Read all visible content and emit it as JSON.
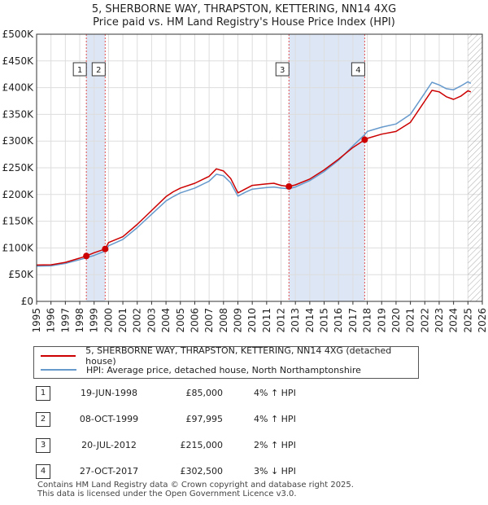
{
  "title": {
    "line1": "5, SHERBORNE WAY, THRAPSTON, KETTERING, NN14 4XG",
    "line2": "Price paid vs. HM Land Registry's House Price Index (HPI)"
  },
  "colors": {
    "price_line": "#cc0000",
    "hpi_line": "#6699cc",
    "shade": "#dde6f5",
    "grid": "#dddddd",
    "marker": "#cc0000"
  },
  "legend": {
    "price_label": "5, SHERBORNE WAY, THRAPSTON, KETTERING, NN14 4XG (detached house)",
    "hpi_label": "HPI: Average price, detached house, North Northamptonshire"
  },
  "transactions": [
    {
      "num": "1",
      "date": "19-JUN-1998",
      "price": "£85,000",
      "hpi": "4% ↑ HPI"
    },
    {
      "num": "2",
      "date": "08-OCT-1999",
      "price": "£97,995",
      "hpi": "4% ↑ HPI"
    },
    {
      "num": "3",
      "date": "20-JUL-2012",
      "price": "£215,000",
      "hpi": "2% ↑ HPI"
    },
    {
      "num": "4",
      "date": "27-OCT-2017",
      "price": "£302,500",
      "hpi": "3% ↓ HPI"
    }
  ],
  "footer": {
    "line1": "Contains HM Land Registry data © Crown copyright and database right 2025.",
    "line2": "This data is licensed under the Open Government Licence v3.0."
  },
  "chart_data": {
    "type": "line",
    "xlim": [
      1995,
      2026
    ],
    "ylim": [
      0,
      500000
    ],
    "x_ticks": [
      1995,
      1996,
      1997,
      1998,
      1999,
      2000,
      2001,
      2002,
      2003,
      2004,
      2005,
      2006,
      2007,
      2008,
      2009,
      2010,
      2011,
      2012,
      2013,
      2014,
      2015,
      2016,
      2017,
      2018,
      2019,
      2020,
      2021,
      2022,
      2023,
      2024,
      2025,
      2026
    ],
    "y_ticks": [
      0,
      50000,
      100000,
      150000,
      200000,
      250000,
      300000,
      350000,
      400000,
      450000,
      500000
    ],
    "y_tick_labels": [
      "£0",
      "£50K",
      "£100K",
      "£150K",
      "£200K",
      "£250K",
      "£300K",
      "£350K",
      "£400K",
      "£450K",
      "£500K"
    ],
    "shaded_ranges": [
      [
        1998.46,
        1999.77
      ],
      [
        2012.55,
        2017.82
      ]
    ],
    "future_hatch_from": 2025.0,
    "sale_points": [
      {
        "label": "1",
        "x": 1998.46,
        "y": 85000
      },
      {
        "label": "2",
        "x": 1999.77,
        "y": 97995
      },
      {
        "label": "3",
        "x": 2012.55,
        "y": 215000
      },
      {
        "label": "4",
        "x": 2017.82,
        "y": 302500
      }
    ],
    "series": [
      {
        "name": "HPI: Average price, detached house, North Northamptonshire",
        "color": "#6699cc",
        "points": [
          [
            1995,
            66000
          ],
          [
            1996,
            66500
          ],
          [
            1997,
            71000
          ],
          [
            1998,
            78000
          ],
          [
            1998.46,
            81700
          ],
          [
            1999,
            86000
          ],
          [
            1999.77,
            94200
          ],
          [
            2000,
            104000
          ],
          [
            2001,
            116000
          ],
          [
            2002,
            138000
          ],
          [
            2003,
            163000
          ],
          [
            2004,
            188000
          ],
          [
            2004.5,
            196000
          ],
          [
            2005,
            203000
          ],
          [
            2006,
            212000
          ],
          [
            2007,
            225000
          ],
          [
            2007.5,
            238000
          ],
          [
            2008,
            235000
          ],
          [
            2008.5,
            222000
          ],
          [
            2009,
            197000
          ],
          [
            2009.5,
            204000
          ],
          [
            2010,
            210000
          ],
          [
            2011,
            213000
          ],
          [
            2011.5,
            214000
          ],
          [
            2012,
            212000
          ],
          [
            2012.55,
            210800
          ],
          [
            2013,
            214000
          ],
          [
            2014,
            226000
          ],
          [
            2015,
            243000
          ],
          [
            2016,
            264000
          ],
          [
            2017,
            291000
          ],
          [
            2017.82,
            312000
          ],
          [
            2018,
            318000
          ],
          [
            2019,
            326000
          ],
          [
            2020,
            332000
          ],
          [
            2021,
            350000
          ],
          [
            2022,
            390000
          ],
          [
            2022.5,
            410000
          ],
          [
            2023,
            405000
          ],
          [
            2023.5,
            398000
          ],
          [
            2024,
            396000
          ],
          [
            2024.5,
            403000
          ],
          [
            2025,
            411000
          ],
          [
            2025.2,
            408000
          ]
        ]
      },
      {
        "name": "5, SHERBORNE WAY, THRAPSTON, KETTERING, NN14 4XG (detached house)",
        "color": "#cc0000",
        "points": [
          [
            1995,
            68000
          ],
          [
            1996,
            68500
          ],
          [
            1997,
            73000
          ],
          [
            1998,
            81000
          ],
          [
            1998.46,
            85000
          ],
          [
            1999,
            91000
          ],
          [
            1999.77,
            97995
          ],
          [
            2000,
            110000
          ],
          [
            2001,
            121000
          ],
          [
            2002,
            144000
          ],
          [
            2003,
            170000
          ],
          [
            2004,
            196000
          ],
          [
            2004.5,
            205000
          ],
          [
            2005,
            212000
          ],
          [
            2006,
            221000
          ],
          [
            2007,
            234000
          ],
          [
            2007.5,
            248000
          ],
          [
            2008,
            244000
          ],
          [
            2008.5,
            230000
          ],
          [
            2009,
            203000
          ],
          [
            2009.5,
            210000
          ],
          [
            2010,
            217000
          ],
          [
            2011,
            220000
          ],
          [
            2011.5,
            221000
          ],
          [
            2012,
            217000
          ],
          [
            2012.55,
            215000
          ],
          [
            2013,
            218000
          ],
          [
            2014,
            229000
          ],
          [
            2015,
            246000
          ],
          [
            2016,
            266000
          ],
          [
            2017,
            288000
          ],
          [
            2017.82,
            302500
          ],
          [
            2018,
            305000
          ],
          [
            2019,
            313000
          ],
          [
            2020,
            318000
          ],
          [
            2021,
            335000
          ],
          [
            2022,
            375000
          ],
          [
            2022.5,
            395000
          ],
          [
            2023,
            392000
          ],
          [
            2023.5,
            383000
          ],
          [
            2024,
            378000
          ],
          [
            2024.5,
            384000
          ],
          [
            2025,
            394000
          ],
          [
            2025.2,
            392000
          ]
        ]
      }
    ]
  }
}
